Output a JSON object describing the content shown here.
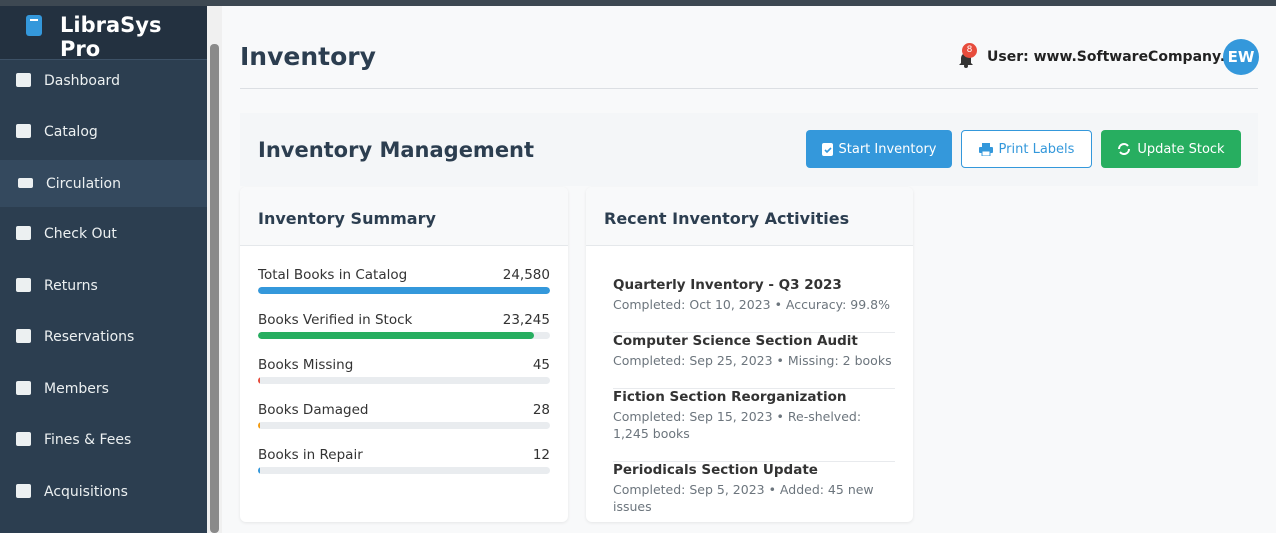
{
  "sidebar": {
    "brand": "LibraSys Pro",
    "nav": [
      "Dashboard",
      "Catalog",
      "Circulation",
      "Check Out",
      "Returns",
      "Reservations",
      "Members",
      "Fines & Fees",
      "Acquisitions"
    ],
    "active": 2
  },
  "header": {
    "title": "Inventory",
    "notification_count": "8",
    "user": "User: www.SoftwareCompany.PK",
    "avatar": "EW"
  },
  "section": {
    "title": "Inventory Management",
    "buttons": [
      "Start Inventory",
      "Print Labels",
      "Update Stock"
    ]
  },
  "summary": {
    "title": "Inventory Summary",
    "items": [
      {
        "label": "Total Books in Catalog",
        "value": 24580,
        "value_label": "24,580",
        "color": "#3498db"
      },
      {
        "label": "Books Verified in Stock",
        "value": 23245,
        "value_label": "23,245",
        "color": "#27ae60"
      },
      {
        "label": "Books Missing",
        "value": 45,
        "value_label": "45",
        "color": "#e74c3c"
      },
      {
        "label": "Books Damaged",
        "value": 28,
        "value_label": "28",
        "color": "#f39c12"
      },
      {
        "label": "Books in Repair",
        "value": 12,
        "value_label": "12",
        "color": "#3498db"
      }
    ]
  },
  "activities": {
    "title": "Recent Inventory Activities",
    "items": [
      {
        "title": "Quarterly Inventory - Q3 2023",
        "detail": "Completed: Oct 10, 2023 • Accuracy: 99.8%"
      },
      {
        "title": "Computer Science Section Audit",
        "detail": "Completed: Sep 25, 2023 • Missing: 2 books"
      },
      {
        "title": "Fiction Section Reorganization",
        "detail": "Completed: Sep 15, 2023 • Re-shelved: 1,245 books"
      },
      {
        "title": "Periodicals Section Update",
        "detail": "Completed: Sep 5, 2023 • Added: 45 new issues"
      }
    ]
  }
}
